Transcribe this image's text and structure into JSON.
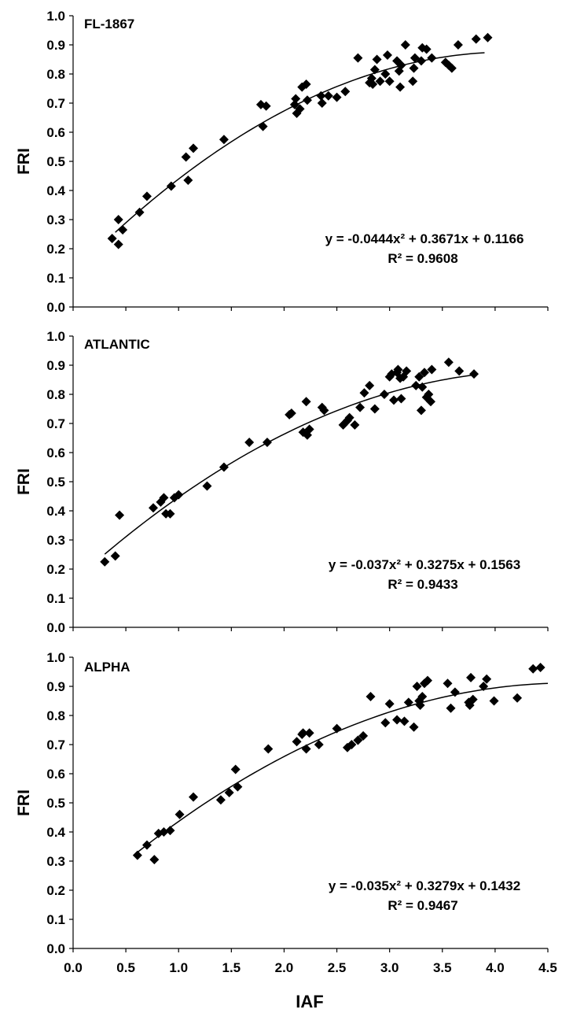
{
  "xlabel": "IAF",
  "x_ticks": [
    "0.0",
    "0.5",
    "1.0",
    "1.5",
    "2.0",
    "2.5",
    "3.0",
    "3.5",
    "4.0",
    "4.5"
  ],
  "y_ticks": [
    "0.0",
    "0.1",
    "0.2",
    "0.3",
    "0.4",
    "0.5",
    "0.6",
    "0.7",
    "0.8",
    "0.9",
    "1.0"
  ],
  "chart_data": [
    {
      "type": "scatter",
      "title": "FL-1867",
      "ylabel": "FRI",
      "xlabel": "",
      "xlim": [
        0,
        4.5
      ],
      "ylim": [
        0,
        1.0
      ],
      "grid": false,
      "equation": "y = -0.0444x² + 0.3671x + 0.1166",
      "r2_label": "R² = 0.9608",
      "fit": {
        "a": -0.0444,
        "b": 0.3671,
        "c": 0.1166,
        "x_range": [
          0.4,
          3.9
        ]
      },
      "points": [
        [
          0.37,
          0.235
        ],
        [
          0.43,
          0.215
        ],
        [
          0.43,
          0.3
        ],
        [
          0.47,
          0.265
        ],
        [
          0.63,
          0.325
        ],
        [
          0.7,
          0.38
        ],
        [
          0.93,
          0.415
        ],
        [
          1.07,
          0.515
        ],
        [
          1.09,
          0.435
        ],
        [
          1.14,
          0.545
        ],
        [
          1.43,
          0.575
        ],
        [
          1.78,
          0.695
        ],
        [
          1.8,
          0.62
        ],
        [
          1.83,
          0.69
        ],
        [
          2.1,
          0.695
        ],
        [
          2.11,
          0.715
        ],
        [
          2.12,
          0.665
        ],
        [
          2.15,
          0.68
        ],
        [
          2.17,
          0.755
        ],
        [
          2.21,
          0.765
        ],
        [
          2.22,
          0.71
        ],
        [
          2.35,
          0.725
        ],
        [
          2.36,
          0.7
        ],
        [
          2.42,
          0.725
        ],
        [
          2.5,
          0.72
        ],
        [
          2.58,
          0.74
        ],
        [
          2.7,
          0.855
        ],
        [
          2.81,
          0.77
        ],
        [
          2.83,
          0.785
        ],
        [
          2.84,
          0.765
        ],
        [
          2.86,
          0.815
        ],
        [
          2.88,
          0.85
        ],
        [
          2.91,
          0.775
        ],
        [
          2.96,
          0.8
        ],
        [
          2.98,
          0.865
        ],
        [
          3.0,
          0.775
        ],
        [
          3.07,
          0.845
        ],
        [
          3.09,
          0.81
        ],
        [
          3.1,
          0.755
        ],
        [
          3.11,
          0.83
        ],
        [
          3.15,
          0.9
        ],
        [
          3.22,
          0.775
        ],
        [
          3.23,
          0.82
        ],
        [
          3.24,
          0.855
        ],
        [
          3.3,
          0.845
        ],
        [
          3.31,
          0.89
        ],
        [
          3.35,
          0.885
        ],
        [
          3.4,
          0.855
        ],
        [
          3.53,
          0.84
        ],
        [
          3.56,
          0.83
        ],
        [
          3.59,
          0.82
        ],
        [
          3.65,
          0.9
        ],
        [
          3.82,
          0.92
        ],
        [
          3.93,
          0.925
        ]
      ]
    },
    {
      "type": "scatter",
      "title": "ATLANTIC",
      "ylabel": "FRI",
      "xlabel": "",
      "xlim": [
        0,
        4.5
      ],
      "ylim": [
        0,
        1.0
      ],
      "grid": false,
      "equation": "y = -0.037x² + 0.3275x + 0.1563",
      "r2_label": "R² = 0.9433",
      "fit": {
        "a": -0.037,
        "b": 0.3275,
        "c": 0.1563,
        "x_range": [
          0.3,
          3.8
        ]
      },
      "points": [
        [
          0.3,
          0.225
        ],
        [
          0.4,
          0.245
        ],
        [
          0.44,
          0.385
        ],
        [
          0.76,
          0.41
        ],
        [
          0.83,
          0.43
        ],
        [
          0.86,
          0.445
        ],
        [
          0.88,
          0.39
        ],
        [
          0.92,
          0.39
        ],
        [
          0.96,
          0.445
        ],
        [
          1.0,
          0.455
        ],
        [
          1.27,
          0.485
        ],
        [
          1.43,
          0.55
        ],
        [
          1.67,
          0.635
        ],
        [
          1.84,
          0.635
        ],
        [
          2.05,
          0.73
        ],
        [
          2.07,
          0.735
        ],
        [
          2.18,
          0.67
        ],
        [
          2.21,
          0.775
        ],
        [
          2.22,
          0.66
        ],
        [
          2.24,
          0.68
        ],
        [
          2.36,
          0.755
        ],
        [
          2.38,
          0.745
        ],
        [
          2.56,
          0.695
        ],
        [
          2.6,
          0.71
        ],
        [
          2.62,
          0.72
        ],
        [
          2.67,
          0.695
        ],
        [
          2.72,
          0.755
        ],
        [
          2.76,
          0.805
        ],
        [
          2.81,
          0.83
        ],
        [
          2.86,
          0.75
        ],
        [
          2.95,
          0.8
        ],
        [
          3.0,
          0.86
        ],
        [
          3.02,
          0.87
        ],
        [
          3.04,
          0.78
        ],
        [
          3.07,
          0.875
        ],
        [
          3.08,
          0.885
        ],
        [
          3.1,
          0.855
        ],
        [
          3.11,
          0.785
        ],
        [
          3.13,
          0.86
        ],
        [
          3.16,
          0.88
        ],
        [
          3.25,
          0.83
        ],
        [
          3.28,
          0.86
        ],
        [
          3.3,
          0.745
        ],
        [
          3.31,
          0.825
        ],
        [
          3.33,
          0.875
        ],
        [
          3.35,
          0.79
        ],
        [
          3.37,
          0.8
        ],
        [
          3.39,
          0.775
        ],
        [
          3.4,
          0.885
        ],
        [
          3.56,
          0.91
        ],
        [
          3.66,
          0.88
        ],
        [
          3.8,
          0.87
        ]
      ]
    },
    {
      "type": "scatter",
      "title": "ALPHA",
      "ylabel": "FRI",
      "xlabel": "IAF",
      "xlim": [
        0,
        4.5
      ],
      "ylim": [
        0,
        1.0
      ],
      "grid": false,
      "equation": "y = -0.035x² + 0.3279x + 0.1432",
      "r2_label": "R² = 0.9467",
      "fit": {
        "a": -0.035,
        "b": 0.3279,
        "c": 0.1432,
        "x_range": [
          0.6,
          4.5
        ]
      },
      "points": [
        [
          0.61,
          0.32
        ],
        [
          0.7,
          0.355
        ],
        [
          0.77,
          0.305
        ],
        [
          0.81,
          0.395
        ],
        [
          0.86,
          0.4
        ],
        [
          0.92,
          0.405
        ],
        [
          1.01,
          0.46
        ],
        [
          1.14,
          0.52
        ],
        [
          1.4,
          0.51
        ],
        [
          1.48,
          0.535
        ],
        [
          1.54,
          0.615
        ],
        [
          1.56,
          0.555
        ],
        [
          1.85,
          0.685
        ],
        [
          2.12,
          0.71
        ],
        [
          2.17,
          0.735
        ],
        [
          2.18,
          0.74
        ],
        [
          2.21,
          0.685
        ],
        [
          2.24,
          0.74
        ],
        [
          2.33,
          0.7
        ],
        [
          2.5,
          0.755
        ],
        [
          2.6,
          0.69
        ],
        [
          2.64,
          0.7
        ],
        [
          2.7,
          0.715
        ],
        [
          2.75,
          0.73
        ],
        [
          2.82,
          0.865
        ],
        [
          2.96,
          0.775
        ],
        [
          3.0,
          0.84
        ],
        [
          3.07,
          0.785
        ],
        [
          3.14,
          0.78
        ],
        [
          3.18,
          0.845
        ],
        [
          3.23,
          0.76
        ],
        [
          3.26,
          0.9
        ],
        [
          3.28,
          0.85
        ],
        [
          3.29,
          0.835
        ],
        [
          3.31,
          0.865
        ],
        [
          3.33,
          0.91
        ],
        [
          3.36,
          0.92
        ],
        [
          3.55,
          0.91
        ],
        [
          3.58,
          0.825
        ],
        [
          3.62,
          0.88
        ],
        [
          3.75,
          0.845
        ],
        [
          3.76,
          0.835
        ],
        [
          3.77,
          0.93
        ],
        [
          3.79,
          0.855
        ],
        [
          3.89,
          0.9
        ],
        [
          3.92,
          0.925
        ],
        [
          3.99,
          0.85
        ],
        [
          4.21,
          0.86
        ],
        [
          4.36,
          0.96
        ],
        [
          4.43,
          0.965
        ]
      ]
    }
  ]
}
